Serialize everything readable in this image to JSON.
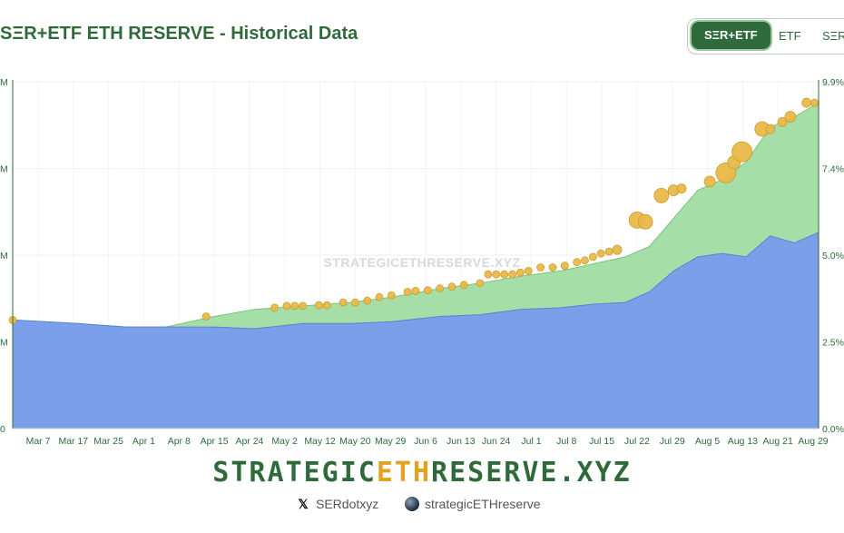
{
  "header": {
    "title": "SΞR+ETF ETH RESERVE - Historical Data"
  },
  "toggle": {
    "options": [
      "SΞR+ETF",
      "ETF",
      "SΞR"
    ],
    "selected": "SΞR+ETF"
  },
  "chart_data": {
    "type": "area",
    "x_ticks": [
      "Mar 7",
      "Mar 17",
      "Mar 25",
      "Apr 1",
      "Apr 8",
      "Apr 15",
      "Apr 24",
      "May 2",
      "May 12",
      "May 20",
      "May 29",
      "Jun 6",
      "Jun 13",
      "Jun 24",
      "Jul 1",
      "Jul 8",
      "Jul 15",
      "Jul 22",
      "Jul 29",
      "Aug 5",
      "Aug 13",
      "Aug 21",
      "Aug 29"
    ],
    "left_axis_ticks": [
      "0",
      "M",
      "M",
      "M",
      "M"
    ],
    "right_axis_ticks": [
      "0.0%",
      "2.5%",
      "5.0%",
      "7.4%",
      "9.9%"
    ],
    "x_index_range": [
      0,
      100
    ],
    "y_range": [
      0,
      9.9
    ],
    "grid": true,
    "watermark": "STRATEGICETHRESERVE.XYZ",
    "series": [
      {
        "color": "#7b9fe8",
        "x": [
          0,
          8,
          14,
          19,
          25,
          30,
          36,
          42,
          47,
          53,
          58,
          63,
          68,
          72,
          76,
          79,
          82,
          85,
          88,
          91,
          94,
          97,
          100
        ],
        "values": [
          3.1,
          3.0,
          2.9,
          2.9,
          2.9,
          2.85,
          3.0,
          3.0,
          3.05,
          3.2,
          3.25,
          3.4,
          3.45,
          3.55,
          3.6,
          3.9,
          4.5,
          4.9,
          5.0,
          4.9,
          5.5,
          5.3,
          5.6
        ]
      },
      {
        "color": "#a6dea7",
        "x": [
          0,
          8,
          14,
          19,
          25,
          30,
          36,
          42,
          47,
          53,
          58,
          63,
          68,
          72,
          76,
          79,
          82,
          85,
          88,
          91,
          94,
          97,
          100
        ],
        "values": [
          3.1,
          3.0,
          2.9,
          2.9,
          3.2,
          3.4,
          3.5,
          3.6,
          3.75,
          4.0,
          4.15,
          4.35,
          4.5,
          4.7,
          4.9,
          5.2,
          6.0,
          6.8,
          7.1,
          7.6,
          8.6,
          8.9,
          9.3
        ]
      }
    ],
    "markers": {
      "color": "#e9b949",
      "points": [
        [
          0,
          3.1
        ],
        [
          24,
          3.2
        ],
        [
          32.5,
          3.45
        ],
        [
          34,
          3.5
        ],
        [
          35,
          3.5
        ],
        [
          36,
          3.5
        ],
        [
          38,
          3.52
        ],
        [
          39,
          3.52
        ],
        [
          41,
          3.6
        ],
        [
          42.5,
          3.6
        ],
        [
          44,
          3.65
        ],
        [
          45.5,
          3.75
        ],
        [
          47,
          3.8
        ],
        [
          49,
          3.9
        ],
        [
          50,
          3.93
        ],
        [
          51.5,
          3.95
        ],
        [
          53,
          4.0
        ],
        [
          54.5,
          4.05
        ],
        [
          56,
          4.1
        ],
        [
          58,
          4.15
        ],
        [
          59,
          4.4
        ],
        [
          60,
          4.4
        ],
        [
          61,
          4.4
        ],
        [
          62,
          4.4
        ],
        [
          63,
          4.45
        ],
        [
          64,
          4.5
        ],
        [
          65.5,
          4.6
        ],
        [
          67,
          4.6
        ],
        [
          68.5,
          4.65
        ],
        [
          70,
          4.75
        ],
        [
          71,
          4.8
        ],
        [
          72,
          4.9
        ],
        [
          73,
          5.0
        ],
        [
          74,
          5.05
        ],
        [
          75,
          5.1
        ],
        [
          77.5,
          5.95
        ],
        [
          78.5,
          5.9
        ],
        [
          80.5,
          6.65
        ],
        [
          82,
          6.8
        ],
        [
          83,
          6.85
        ],
        [
          86.5,
          7.05
        ],
        [
          88.5,
          7.3
        ],
        [
          89.5,
          7.6
        ],
        [
          90.5,
          7.9
        ],
        [
          93,
          8.55
        ],
        [
          94,
          8.55
        ],
        [
          95.5,
          8.75
        ],
        [
          96.5,
          8.9
        ],
        [
          98.5,
          9.3
        ],
        [
          99.5,
          9.3
        ]
      ],
      "sizes": [
        4,
        4,
        4,
        4,
        4,
        4,
        4,
        4,
        4,
        4,
        4,
        4,
        4,
        4,
        4,
        4,
        4,
        4,
        4,
        4,
        4,
        4,
        4,
        4,
        4,
        4,
        4,
        4,
        4,
        4,
        4,
        4,
        4,
        4,
        5,
        9,
        8,
        8,
        6,
        5,
        6,
        11,
        7,
        11,
        8,
        5,
        5,
        6,
        5,
        4
      ]
    }
  },
  "footer": {
    "brand_part1": "STRATEGIC",
    "brand_part2": "ETH",
    "brand_part3": "RESERVE.XYZ",
    "social_x": "SERdotxyz",
    "social_site": "strategicETHreserve"
  }
}
